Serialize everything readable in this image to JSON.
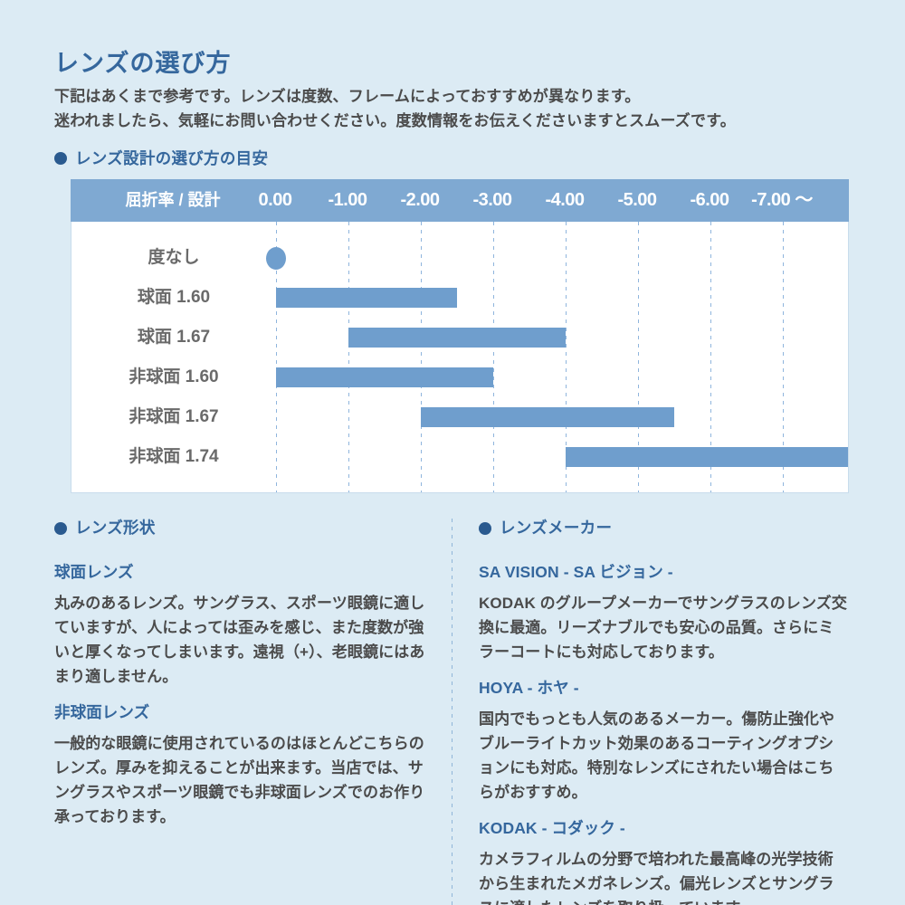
{
  "page": {
    "title": "レンズの選び方",
    "intro_line1": "下記はあくまで参考です。レンズは度数、フレームによっておすすめが異なります。",
    "intro_line2": "迷われましたら、気軽にお問い合わせください。度数情報をお伝えくださいますとスムーズです。"
  },
  "chart_section": {
    "heading": "レンズ設計の選び方の目安"
  },
  "chart_data": {
    "type": "bar",
    "orientation": "horizontal-range",
    "title": "レンズ設計の選び方の目安",
    "header_label": "屈折率 / 設計",
    "axis_ticks": [
      "0.00",
      "-1.00",
      "-2.00",
      "-3.00",
      "-4.00",
      "-5.00",
      "-6.00",
      "-7.00 ～"
    ],
    "axis_range": [
      0,
      -7.9
    ],
    "grid": "dashed-vertical",
    "rows": [
      {
        "label": "度なし",
        "type": "dot",
        "start": 0,
        "end": 0
      },
      {
        "label": "球面 1.60",
        "type": "bar",
        "start": 0,
        "end": -2.5
      },
      {
        "label": "球面 1.67",
        "type": "bar",
        "start": -1,
        "end": -4
      },
      {
        "label": "非球面 1.60",
        "type": "bar",
        "start": 0,
        "end": -3
      },
      {
        "label": "非球面 1.67",
        "type": "bar",
        "start": -2,
        "end": -5.5
      },
      {
        "label": "非球面 1.74",
        "type": "bar",
        "start": -4,
        "end": -7.9
      }
    ]
  },
  "shape_section": {
    "heading": "レンズ形状",
    "items": [
      {
        "title": "球面レンズ",
        "body": "丸みのあるレンズ。サングラス、スポーツ眼鏡に適していますが、人によっては歪みを感じ、また度数が強いと厚くなってしまいます。遠視（+）、老眼鏡にはあまり適しません。"
      },
      {
        "title": "非球面レンズ",
        "body": "一般的な眼鏡に使用されているのはほとんどこちらのレンズ。厚みを抑えることが出来ます。当店では、サングラスやスポーツ眼鏡でも非球面レンズでのお作り承っております。"
      }
    ]
  },
  "maker_section": {
    "heading": "レンズメーカー",
    "items": [
      {
        "title": "SA VISION - SA ビジョン -",
        "body": "KODAK のグループメーカーでサングラスのレンズ交換に最適。リーズナブルでも安心の品質。さらにミラーコートにも対応しております。"
      },
      {
        "title": "HOYA - ホヤ -",
        "body": "国内でもっとも人気のあるメーカー。傷防止強化やブルーライトカット効果のあるコーティングオプションにも対応。特別なレンズにされたい場合はこちらがおすすめ。"
      },
      {
        "title": "KODAK - コダック -",
        "body": "カメラフィルムの分野で培われた最高峰の光学技術から生まれたメガネレンズ。偏光レンズとサングラスに適したレンズを取り扱っています。"
      }
    ]
  },
  "colors": {
    "page_bg": "#dcebf4",
    "heading_blue": "#35679d",
    "bullet": "#2a5a8f",
    "body_text": "#4b4b4b",
    "row_label": "#6a6a6a",
    "chart_header_bg": "#7fa9d2",
    "chart_header_text": "#ffffff",
    "chart_body_bg": "#ffffff",
    "chart_border": "#c8dcec",
    "bar_fill": "#6f9ecd",
    "gridline": "#8fb5dd",
    "divider": "#8fb5d8"
  }
}
